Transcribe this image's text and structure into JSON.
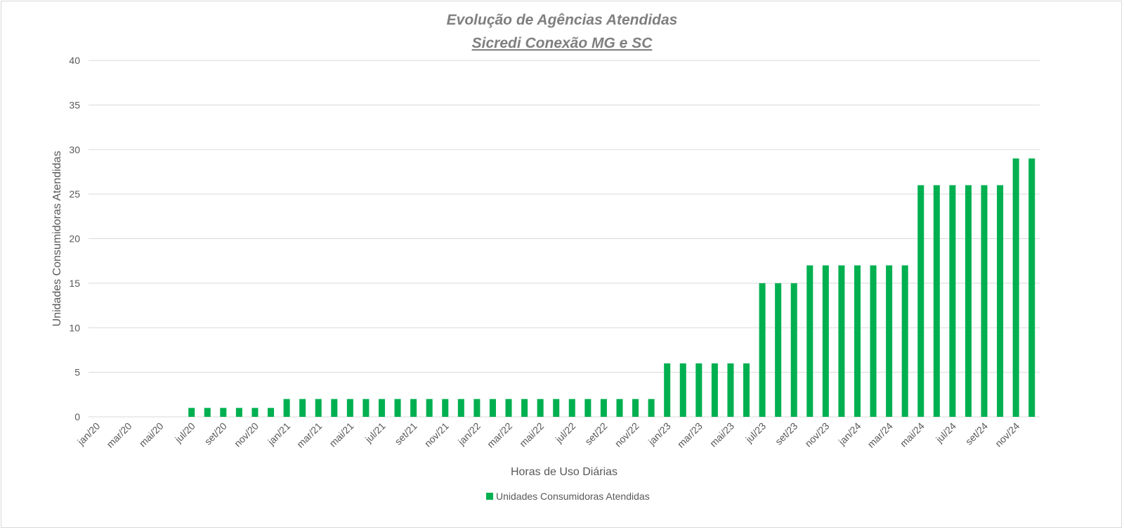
{
  "chart_data": {
    "type": "bar",
    "title": "Evolução de Agências Atendidas",
    "subtitle": "Sicredi Conexão MG e SC",
    "xlabel": "Horas de Uso Diárias",
    "ylabel": "Unidades Consumidoras Atendidas",
    "ylim": [
      0,
      40
    ],
    "yticks": [
      0,
      5,
      10,
      15,
      20,
      25,
      30,
      35,
      40
    ],
    "grid": true,
    "legend_position": "bottom",
    "categories": [
      "jan/20",
      "fev/20",
      "mar/20",
      "abr/20",
      "mai/20",
      "jun/20",
      "jul/20",
      "ago/20",
      "set/20",
      "out/20",
      "nov/20",
      "dez/20",
      "jan/21",
      "fev/21",
      "mar/21",
      "abr/21",
      "mai/21",
      "jun/21",
      "jul/21",
      "ago/21",
      "set/21",
      "out/21",
      "nov/21",
      "dez/21",
      "jan/22",
      "fev/22",
      "mar/22",
      "abr/22",
      "mai/22",
      "jun/22",
      "jul/22",
      "ago/22",
      "set/22",
      "out/22",
      "nov/22",
      "dez/22",
      "jan/23",
      "fev/23",
      "mar/23",
      "abr/23",
      "mai/23",
      "jun/23",
      "jul/23",
      "ago/23",
      "set/23",
      "out/23",
      "nov/23",
      "dez/23",
      "jan/24",
      "fev/24",
      "mar/24",
      "abr/24",
      "mai/24",
      "jun/24",
      "jul/24",
      "ago/24",
      "set/24",
      "out/24",
      "nov/24",
      "dez/24"
    ],
    "shown_tick_labels": [
      "jan/20",
      "mar/20",
      "mai/20",
      "jul/20",
      "set/20",
      "nov/20",
      "jan/21",
      "mar/21",
      "mai/21",
      "jul/21",
      "set/21",
      "nov/21",
      "jan/22",
      "mar/22",
      "mai/22",
      "jul/22",
      "set/22",
      "nov/22",
      "jan/23",
      "mar/23",
      "mai/23",
      "jul/23",
      "set/23",
      "nov/23",
      "jan/24",
      "mar/24",
      "mai/24",
      "jul/24",
      "set/24",
      "nov/24"
    ],
    "series": [
      {
        "name": "Unidades Consumidoras Atendidas",
        "color": "#00b050",
        "values": [
          0,
          0,
          0,
          0,
          0,
          0,
          1,
          1,
          1,
          1,
          1,
          1,
          2,
          2,
          2,
          2,
          2,
          2,
          2,
          2,
          2,
          2,
          2,
          2,
          2,
          2,
          2,
          2,
          2,
          2,
          2,
          2,
          2,
          2,
          2,
          2,
          6,
          6,
          6,
          6,
          6,
          6,
          15,
          15,
          15,
          17,
          17,
          17,
          17,
          17,
          17,
          17,
          26,
          26,
          26,
          26,
          26,
          26,
          29,
          29
        ]
      }
    ]
  }
}
